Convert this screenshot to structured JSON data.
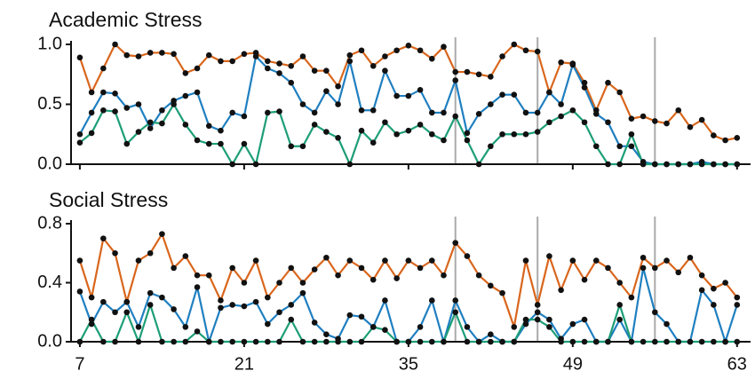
{
  "chart_data": [
    {
      "type": "line",
      "title": "Academic Stress",
      "x": [
        7,
        8,
        9,
        10,
        11,
        12,
        13,
        14,
        15,
        16,
        17,
        18,
        19,
        20,
        21,
        22,
        23,
        24,
        25,
        26,
        27,
        28,
        29,
        30,
        31,
        32,
        33,
        34,
        35,
        36,
        37,
        38,
        39,
        40,
        41,
        42,
        43,
        44,
        45,
        46,
        47,
        48,
        49,
        50,
        51,
        52,
        53,
        54,
        55,
        56,
        57,
        58,
        59,
        60,
        61,
        62,
        63
      ],
      "series": [
        {
          "color": "#d9661c",
          "values": [
            0.89,
            0.6,
            0.8,
            1.0,
            0.91,
            0.9,
            0.93,
            0.93,
            0.92,
            0.76,
            0.8,
            0.91,
            0.86,
            0.86,
            0.92,
            0.93,
            0.86,
            0.84,
            0.82,
            0.9,
            0.78,
            0.78,
            0.65,
            0.91,
            0.95,
            0.82,
            0.9,
            0.95,
            0.99,
            0.95,
            0.88,
            0.98,
            0.77,
            0.77,
            0.75,
            0.73,
            0.9,
            1.0,
            0.95,
            0.94,
            0.6,
            0.85,
            0.84,
            0.68,
            0.45,
            0.68,
            0.6,
            0.38,
            0.4,
            0.36,
            0.34,
            0.45,
            0.31,
            0.37,
            0.24,
            0.2,
            0.22
          ]
        },
        {
          "color": "#1f7fc0",
          "values": [
            0.25,
            0.43,
            0.6,
            0.59,
            0.47,
            0.5,
            0.3,
            0.45,
            0.53,
            0.57,
            0.6,
            0.32,
            0.28,
            0.43,
            0.4,
            0.9,
            0.8,
            0.76,
            0.68,
            0.5,
            0.43,
            0.61,
            0.5,
            0.86,
            0.45,
            0.45,
            0.78,
            0.57,
            0.57,
            0.62,
            0.43,
            0.43,
            0.7,
            0.26,
            0.42,
            0.5,
            0.58,
            0.58,
            0.43,
            0.43,
            0.6,
            0.5,
            0.83,
            0.64,
            0.42,
            0.35,
            0.15,
            0.15,
            0.02,
            0,
            0,
            0,
            0,
            0.02,
            0,
            0,
            0
          ]
        },
        {
          "color": "#1d9e77",
          "values": [
            0.18,
            0.26,
            0.45,
            0.44,
            0.17,
            0.27,
            0.35,
            0.34,
            0.5,
            0.33,
            0.2,
            0.17,
            0.17,
            0,
            0.17,
            0,
            0.43,
            0.44,
            0.15,
            0.15,
            0.33,
            0.27,
            0.22,
            0,
            0.28,
            0.18,
            0.35,
            0.25,
            0.28,
            0.33,
            0.25,
            0.2,
            0.4,
            0.2,
            0,
            0.15,
            0.25,
            0.25,
            0.25,
            0.27,
            0.35,
            0.4,
            0.45,
            0.35,
            0.15,
            0,
            0,
            0.25,
            0,
            0,
            0,
            0,
            0,
            0,
            0,
            0,
            0
          ]
        }
      ],
      "xlim": [
        6.25,
        64.15
      ],
      "ylim": [
        0,
        1.0
      ],
      "yticks": [
        {
          "value": 0,
          "label": "0.0"
        },
        0.5,
        {
          "value": 1,
          "label": "1.0"
        }
      ],
      "xticks": [
        7,
        21,
        35,
        49,
        63
      ],
      "vlines": [
        39,
        46,
        56
      ]
    },
    {
      "type": "line",
      "title": "Social Stress",
      "x": [
        7,
        8,
        9,
        10,
        11,
        12,
        13,
        14,
        15,
        16,
        17,
        18,
        19,
        20,
        21,
        22,
        23,
        24,
        25,
        26,
        27,
        28,
        29,
        30,
        31,
        32,
        33,
        34,
        35,
        36,
        37,
        38,
        39,
        40,
        41,
        42,
        43,
        44,
        45,
        46,
        47,
        48,
        49,
        50,
        51,
        52,
        53,
        54,
        55,
        56,
        57,
        58,
        59,
        60,
        61,
        62,
        63
      ],
      "series": [
        {
          "color": "#d9661c",
          "values": [
            0.55,
            0.3,
            0.7,
            0.6,
            0.27,
            0.55,
            0.6,
            0.73,
            0.5,
            0.58,
            0.45,
            0.45,
            0.28,
            0.5,
            0.4,
            0.55,
            0.3,
            0.4,
            0.5,
            0.4,
            0.49,
            0.57,
            0.45,
            0.55,
            0.5,
            0.42,
            0.55,
            0.43,
            0.55,
            0.5,
            0.55,
            0.45,
            0.67,
            0.58,
            0.45,
            0.38,
            0.33,
            0.1,
            0.55,
            0.25,
            0.58,
            0.35,
            0.55,
            0.42,
            0.55,
            0.5,
            0.4,
            0.3,
            0.57,
            0.5,
            0.55,
            0.47,
            0.57,
            0.45,
            0.36,
            0.4,
            0.3
          ]
        },
        {
          "color": "#1f7fc0",
          "values": [
            0.34,
            0.12,
            0.27,
            0.2,
            0.27,
            0.1,
            0.33,
            0.3,
            0.22,
            0.1,
            0.37,
            0,
            0.23,
            0.25,
            0.24,
            0.27,
            0.12,
            0.2,
            0.25,
            0.33,
            0.13,
            0.05,
            0.02,
            0.18,
            0.17,
            0.1,
            0.28,
            0,
            0,
            0.1,
            0.28,
            0,
            0.28,
            0.1,
            0,
            0.05,
            0,
            0,
            0.12,
            0.2,
            0.15,
            0.02,
            0.12,
            0.15,
            0,
            0,
            0.15,
            0,
            0.5,
            0.2,
            0.12,
            0,
            0,
            0.35,
            0.25,
            0,
            0.25
          ]
        },
        {
          "color": "#1d9e77",
          "values": [
            0,
            0.15,
            0,
            0,
            0.2,
            0,
            0.25,
            0,
            0,
            0,
            0.07,
            0,
            0,
            0,
            0,
            0,
            0,
            0,
            0.15,
            0,
            0,
            0,
            0,
            0,
            0,
            0.1,
            0.08,
            0,
            0,
            0,
            0,
            0,
            0.2,
            0,
            0,
            0,
            0,
            0,
            0.15,
            0.15,
            0.1,
            0,
            0,
            0,
            0,
            0,
            0.25,
            0,
            0,
            0,
            0,
            0,
            0,
            0,
            0,
            0,
            0
          ]
        }
      ],
      "xlim": [
        6.25,
        64.15
      ],
      "ylim": [
        0,
        0.8
      ],
      "yticks": [
        {
          "value": 0,
          "label": "0.0"
        },
        0.4,
        0.8
      ],
      "xticks": [
        7,
        21,
        35,
        49,
        63
      ],
      "vlines": [
        39,
        46,
        56
      ]
    }
  ]
}
